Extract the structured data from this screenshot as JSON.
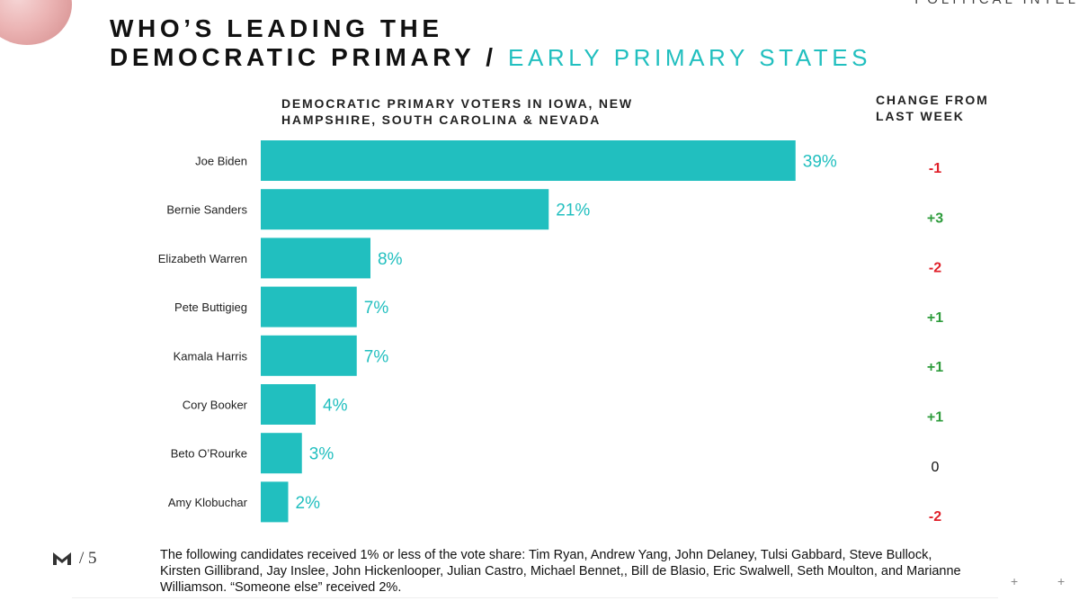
{
  "header": {
    "corner_text": "POLITICAL INTEL",
    "title_line1": "WHO’S LEADING THE",
    "title_line2": "DEMOCRATIC PRIMARY",
    "title_separator": "/",
    "title_accent": "EARLY PRIMARY STATES"
  },
  "chart_data": {
    "type": "bar",
    "orientation": "horizontal",
    "title": "DEMOCRATIC PRIMARY VOTERS IN IOWA, NEW HAMPSHIRE, SOUTH CAROLINA & NEVADA",
    "categories": [
      "Joe Biden",
      "Bernie Sanders",
      "Elizabeth Warren",
      "Pete Buttigieg",
      "Kamala Harris",
      "Cory Booker",
      "Beto O’Rourke",
      "Amy Klobuchar"
    ],
    "values": [
      39,
      21,
      8,
      7,
      7,
      4,
      3,
      2
    ],
    "value_labels": [
      "39%",
      "21%",
      "8%",
      "7%",
      "7%",
      "4%",
      "3%",
      "2%"
    ],
    "unit": "%",
    "xlim": [
      0,
      40
    ],
    "grid": false,
    "bar_color": "#21bfbf",
    "change_header": "CHANGE FROM LAST WEEK",
    "change": [
      "-1",
      "+3",
      "-2",
      "+1",
      "+1",
      "+1",
      "0",
      "-2"
    ],
    "change_colors": {
      "negative": "#e0202a",
      "positive": "#2e9c3c",
      "neutral": "#111111"
    }
  },
  "footer": {
    "note": "The following candidates received 1% or less of the vote share: Tim Ryan, Andrew Yang, John Delaney, Tulsi Gabbard, Steve Bullock, Kirsten Gillibrand, Jay Inslee, John Hickenlooper, Julian Castro, Michael Bennet,, Bill de Blasio, Eric Swalwell, Seth Moulton, and Marianne Williamson. “Someone else” received 2%.",
    "page_label": "/ 5",
    "logo_icon": "m-logo-icon",
    "plus_marks": [
      "+",
      "+"
    ]
  }
}
